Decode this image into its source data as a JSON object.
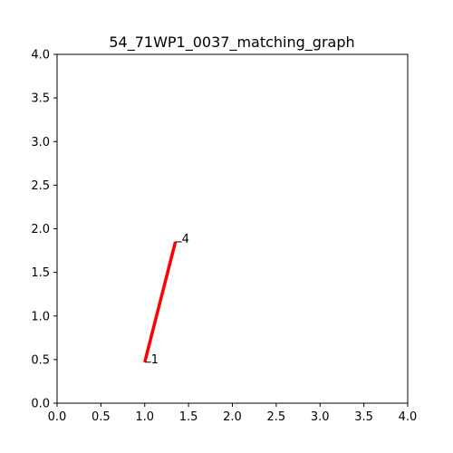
{
  "chart_data": {
    "type": "line",
    "title": "54_71WP1_0037_matching_graph",
    "xlabel": "",
    "ylabel": "",
    "xlim": [
      0,
      4
    ],
    "ylim": [
      0,
      4
    ],
    "grid": false,
    "x_ticks": [
      "0.0",
      "0.5",
      "1.0",
      "1.5",
      "2.0",
      "2.5",
      "3.0",
      "3.5",
      "4.0"
    ],
    "y_ticks": [
      "0.0",
      "0.5",
      "1.0",
      "1.5",
      "2.0",
      "2.5",
      "3.0",
      "3.5",
      "4.0"
    ],
    "nodes": [
      {
        "label": "1",
        "x": 1.0,
        "y": 0.47
      },
      {
        "label": "4",
        "x": 1.35,
        "y": 1.85
      }
    ],
    "edges": [
      {
        "from": "1",
        "to": "4",
        "color": "#ff0000"
      }
    ]
  }
}
